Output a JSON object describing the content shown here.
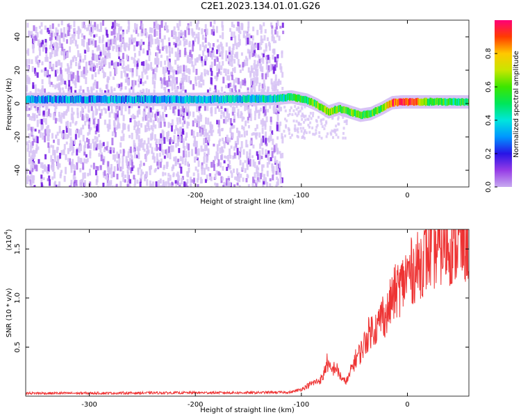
{
  "title": "C2E1.2023.134.01.01.G26",
  "chart_data": [
    {
      "type": "heatmap",
      "xlabel": "Height of straight line (km)",
      "ylabel": "Frequency (Hz)",
      "xlim": [
        -360,
        58
      ],
      "ylim": [
        -50,
        50
      ],
      "xticks": [
        -300,
        -200,
        -100,
        0
      ],
      "yticks": [
        -40,
        -20,
        0,
        20,
        40
      ],
      "colorbar": {
        "label": "Normalized spectral amplitude",
        "range": [
          0,
          1
        ],
        "ticks": [
          0.0,
          0.2,
          0.4,
          0.6,
          0.8
        ],
        "tick_labels": [
          "0.0",
          "0.2",
          "0.4",
          "0.6",
          "0.8"
        ]
      },
      "noise_region_x": [
        -360,
        -118
      ],
      "signal_track": {
        "x": [
          -360,
          -300,
          -200,
          -125,
          -110,
          -95,
          -85,
          -75,
          -65,
          -55,
          -45,
          -35,
          -25,
          -15,
          -5,
          5,
          15,
          30,
          45,
          58
        ],
        "frequency": [
          2.5,
          2.5,
          2.5,
          3,
          4,
          2,
          -1,
          -5,
          -3,
          -5,
          -7,
          -6,
          -3,
          0.5,
          1,
          1,
          1,
          1,
          1,
          1
        ],
        "amplitude": [
          0.3,
          0.3,
          0.35,
          0.4,
          0.5,
          0.55,
          0.6,
          0.7,
          0.55,
          0.6,
          0.55,
          0.55,
          0.6,
          0.9,
          0.95,
          0.9,
          0.6,
          0.55,
          0.5,
          0.55
        ]
      }
    },
    {
      "type": "line",
      "xlabel": "Height of straight line (km)",
      "ylabel": "SNR (10 * v/v)",
      "y_multiplier_label": "(x10",
      "y_multiplier_exp": "4",
      "xlim": [
        -360,
        58
      ],
      "ylim": [
        0,
        17000
      ],
      "xticks": [
        -300,
        -200,
        -100,
        0
      ],
      "yticks": [
        5000,
        10000,
        15000
      ],
      "ytick_labels": [
        "0.5",
        "1.0",
        "1.5"
      ],
      "color": "#ee3333",
      "series": [
        {
          "x": [
            -360,
            -300,
            -200,
            -150,
            -110,
            -100,
            -95,
            -90,
            -85,
            -80,
            -76,
            -72,
            -68,
            -64,
            -60,
            -56,
            -52,
            -48,
            -44,
            -40,
            -36,
            -32,
            -28,
            -24,
            -20,
            -16,
            -12,
            -8,
            -4,
            0,
            5,
            10,
            15,
            20,
            25,
            30,
            35,
            40,
            45,
            50,
            58
          ],
          "y": [
            300,
            300,
            350,
            350,
            400,
            700,
            1000,
            1300,
            1500,
            1800,
            3500,
            2500,
            3000,
            2200,
            1500,
            1700,
            3000,
            4000,
            4500,
            5500,
            6500,
            7000,
            7000,
            8500,
            8000,
            9500,
            10500,
            11000,
            11500,
            12500,
            12800,
            13200,
            14000,
            14500,
            14800,
            15200,
            15400,
            15400,
            15500,
            15600,
            15700
          ]
        }
      ]
    }
  ]
}
